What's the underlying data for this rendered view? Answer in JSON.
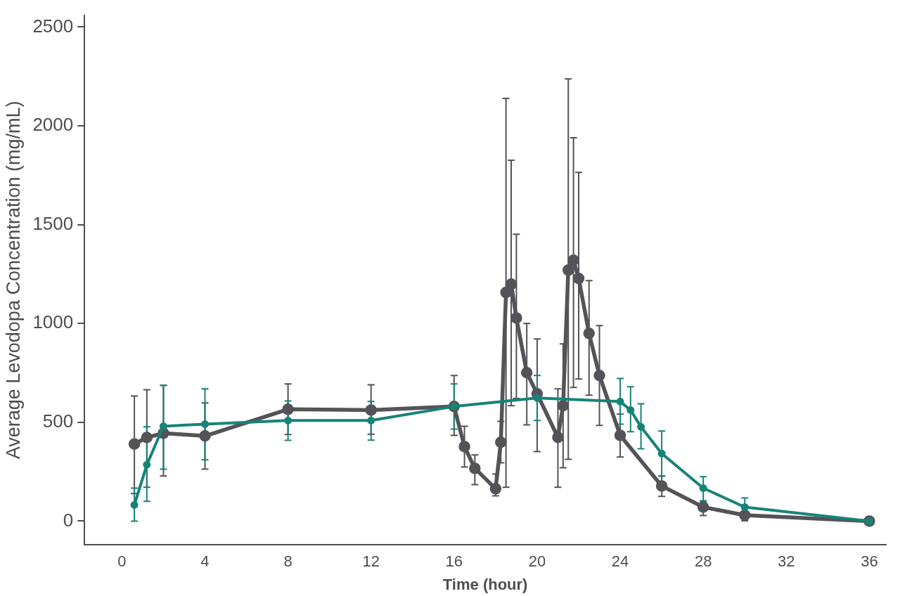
{
  "chart_data": {
    "type": "line",
    "xlabel": "Time (hour)",
    "ylabel": "Average Levodopa Concentration (mg/mL)",
    "xlim": [
      -1.8,
      36.8
    ],
    "xticks": [
      0,
      4,
      8,
      12,
      16,
      20,
      24,
      28,
      32,
      36
    ],
    "ylim": [
      -120,
      2560
    ],
    "yticks": [
      0,
      500,
      1000,
      1500,
      2000,
      2500
    ],
    "grid": false,
    "legend": false,
    "marker": "circle",
    "line_style": "solid",
    "series": [
      {
        "color": "#535358",
        "x": [
          0.6,
          1.2,
          2,
          4,
          8,
          12,
          16,
          16.5,
          17,
          18,
          18.25,
          18.5,
          18.75,
          19,
          19.5,
          20,
          21,
          21.25,
          21.5,
          21.75,
          22,
          22.5,
          23,
          24,
          26,
          28,
          30,
          36
        ],
        "values": [
          390,
          423,
          445,
          431,
          566,
          562,
          580,
          377,
          267,
          164,
          399,
          1157,
          1199,
          1028,
          751,
          644,
          424,
          584,
          1270,
          1320,
          1228,
          950,
          737,
          434,
          178,
          71,
          30,
          0
        ],
        "errors": [
          [
            139,
            633
          ],
          [
            171,
            665
          ],
          [
            228,
            687
          ],
          [
            263,
            598
          ],
          [
            438,
            694
          ],
          [
            440,
            690
          ],
          [
            434,
            737
          ],
          [
            274,
            480
          ],
          [
            185,
            335
          ],
          [
            128,
            238
          ],
          [
            295,
            505
          ],
          [
            171,
            2139
          ],
          [
            584,
            1826
          ],
          [
            620,
            1452
          ],
          [
            487,
            1000
          ],
          [
            352,
            922
          ],
          [
            171,
            669
          ],
          [
            270,
            897
          ],
          [
            313,
            2238
          ],
          [
            676,
            1940
          ],
          [
            719,
            1765
          ],
          [
            637,
            1217
          ],
          [
            484,
            989
          ],
          [
            324,
            541
          ],
          [
            125,
            228
          ],
          [
            28,
            100
          ],
          [
            2,
            46
          ],
          null
        ]
      },
      {
        "color": "#168378",
        "x": [
          0.6,
          1.2,
          2,
          4,
          8,
          12,
          16,
          20,
          24,
          24.5,
          25,
          26,
          28,
          30,
          36
        ],
        "values": [
          82,
          285,
          480,
          491,
          509,
          509,
          580,
          623,
          605,
          562,
          477,
          342,
          167,
          71,
          0
        ],
        "errors": [
          [
            0,
            167
          ],
          [
            100,
            477
          ],
          [
            263,
            687
          ],
          [
            310,
            669
          ],
          [
            409,
            608
          ],
          [
            410,
            605
          ],
          [
            466,
            694
          ],
          [
            509,
            737
          ],
          [
            491,
            722
          ],
          [
            452,
            680
          ],
          [
            366,
            594
          ],
          [
            228,
            456
          ],
          [
            103,
            225
          ],
          [
            71,
            117
          ],
          null
        ]
      }
    ]
  }
}
